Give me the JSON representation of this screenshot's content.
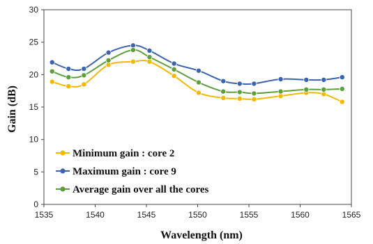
{
  "chart_data": {
    "type": "line",
    "xlabel": "Wavelength (nm)",
    "ylabel": "Gain (dB)",
    "xlim": [
      1535,
      1565
    ],
    "ylim": [
      0,
      30
    ],
    "xticks": [
      1535,
      1540,
      1545,
      1550,
      1555,
      1560,
      1565
    ],
    "yticks": [
      0,
      5,
      10,
      15,
      20,
      25,
      30
    ],
    "grid": "none",
    "legend_position": "bottom-left",
    "x": [
      1535.8,
      1537.4,
      1538.9,
      1541.3,
      1543.7,
      1545.3,
      1547.7,
      1550.1,
      1552.5,
      1554.1,
      1555.5,
      1558.1,
      1560.6,
      1562.3,
      1564.1
    ],
    "series": [
      {
        "name": "Minimum gain : core 2",
        "color": "#F5B800",
        "values": [
          18.9,
          18.2,
          18.5,
          21.5,
          22.0,
          22.0,
          19.8,
          17.2,
          16.4,
          16.3,
          16.2,
          16.7,
          17.2,
          17.0,
          15.8
        ]
      },
      {
        "name": "Maximum gain : core 9",
        "color": "#3B63AE",
        "values": [
          21.9,
          20.9,
          20.9,
          23.4,
          24.5,
          23.7,
          21.7,
          20.6,
          19.0,
          18.6,
          18.6,
          19.3,
          19.2,
          19.2,
          19.6
        ]
      },
      {
        "name": "Average gain over all the cores",
        "color": "#5E9E3E",
        "values": [
          20.5,
          19.6,
          19.9,
          22.2,
          23.8,
          22.7,
          20.8,
          18.8,
          17.4,
          17.3,
          17.1,
          17.4,
          17.7,
          17.7,
          17.8
        ]
      }
    ]
  }
}
